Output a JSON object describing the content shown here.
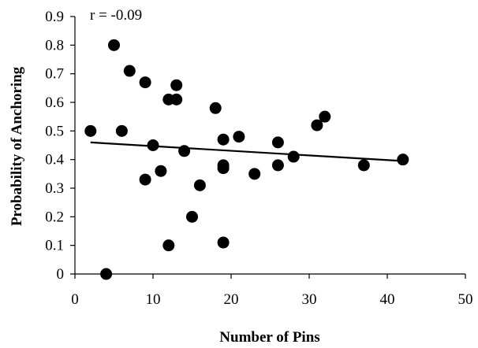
{
  "chart_data": {
    "type": "scatter",
    "title": "",
    "xlabel": "Number of Pins",
    "ylabel": "Probability of Anchoring",
    "xlim": [
      0,
      50
    ],
    "ylim": [
      0,
      0.9
    ],
    "x_ticks": [
      0,
      10,
      20,
      30,
      40,
      50
    ],
    "y_ticks": [
      0,
      0.1,
      0.2,
      0.3,
      0.4,
      0.5,
      0.6,
      0.7,
      0.8,
      0.9
    ],
    "annotation": "r = -0.09",
    "grid": false,
    "legend": "none",
    "marker_color": "#000000",
    "points": [
      {
        "x": 2,
        "y": 0.5
      },
      {
        "x": 4,
        "y": 0.0
      },
      {
        "x": 5,
        "y": 0.8
      },
      {
        "x": 6,
        "y": 0.5
      },
      {
        "x": 7,
        "y": 0.71
      },
      {
        "x": 9,
        "y": 0.67
      },
      {
        "x": 9,
        "y": 0.33
      },
      {
        "x": 10,
        "y": 0.45
      },
      {
        "x": 11,
        "y": 0.36
      },
      {
        "x": 12,
        "y": 0.61
      },
      {
        "x": 12,
        "y": 0.1
      },
      {
        "x": 13,
        "y": 0.66
      },
      {
        "x": 13,
        "y": 0.61
      },
      {
        "x": 14,
        "y": 0.43
      },
      {
        "x": 15,
        "y": 0.2
      },
      {
        "x": 16,
        "y": 0.31
      },
      {
        "x": 18,
        "y": 0.58
      },
      {
        "x": 19,
        "y": 0.47
      },
      {
        "x": 19,
        "y": 0.38
      },
      {
        "x": 19,
        "y": 0.37
      },
      {
        "x": 19,
        "y": 0.11
      },
      {
        "x": 21,
        "y": 0.48
      },
      {
        "x": 23,
        "y": 0.35
      },
      {
        "x": 26,
        "y": 0.46
      },
      {
        "x": 26,
        "y": 0.38
      },
      {
        "x": 28,
        "y": 0.41
      },
      {
        "x": 31,
        "y": 0.52
      },
      {
        "x": 32,
        "y": 0.55
      },
      {
        "x": 37,
        "y": 0.38
      },
      {
        "x": 42,
        "y": 0.4
      }
    ],
    "trendline": {
      "x": [
        2,
        42
      ],
      "y": [
        0.46,
        0.395
      ]
    }
  }
}
